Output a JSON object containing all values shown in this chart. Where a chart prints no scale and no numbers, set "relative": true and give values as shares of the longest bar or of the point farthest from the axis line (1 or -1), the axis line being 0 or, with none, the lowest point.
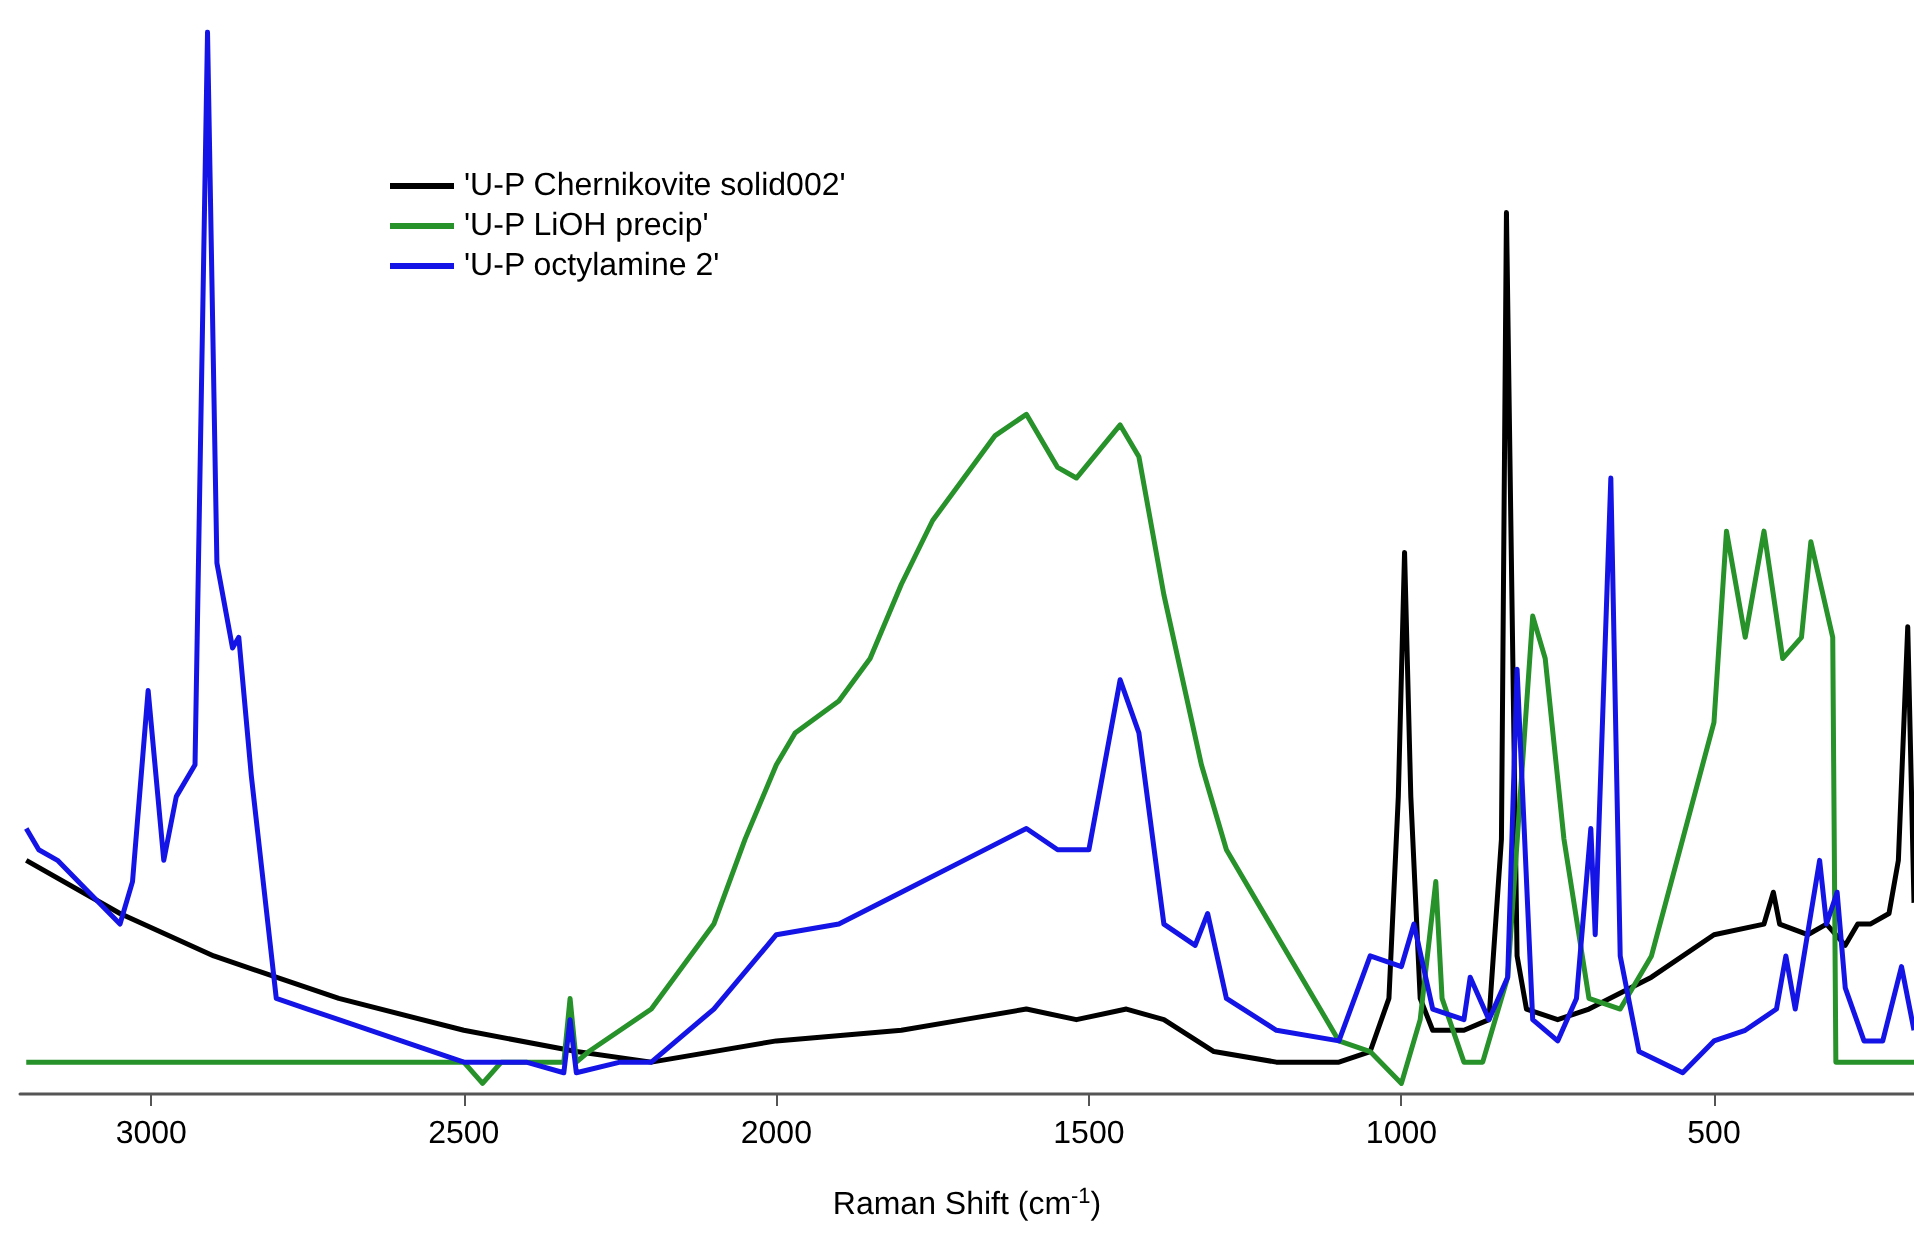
{
  "chart_data": {
    "type": "line",
    "relative": true,
    "xlabel": "Raman Shift (cm$^{-1}$)",
    "xlim": [
      3210,
      180
    ],
    "xticks": [
      3000,
      2500,
      2000,
      1500,
      1000,
      500
    ],
    "tick_labels": "x",
    "grid": false,
    "legend": "top left",
    "marker": "none",
    "line_style": "solid",
    "series": [
      {
        "name": "'U-P Chernikovite solid002'",
        "color": "#000000",
        "x": [
          3200,
          3050,
          2900,
          2700,
          2500,
          2320,
          2200,
          2000,
          1800,
          1700,
          1600,
          1520,
          1440,
          1380,
          1300,
          1200,
          1100,
          1050,
          1020,
          1005,
          995,
          985,
          970,
          950,
          900,
          860,
          840,
          832,
          825,
          815,
          800,
          750,
          700,
          600,
          500,
          420,
          405,
          395,
          350,
          320,
          290,
          270,
          250,
          220,
          205,
          190,
          180
        ],
        "values": [
          0.22,
          0.17,
          0.13,
          0.09,
          0.06,
          0.04,
          0.03,
          0.05,
          0.06,
          0.07,
          0.08,
          0.07,
          0.08,
          0.07,
          0.04,
          0.03,
          0.03,
          0.04,
          0.09,
          0.28,
          0.51,
          0.28,
          0.09,
          0.06,
          0.06,
          0.07,
          0.24,
          0.83,
          0.54,
          0.13,
          0.08,
          0.07,
          0.08,
          0.11,
          0.15,
          0.16,
          0.19,
          0.16,
          0.15,
          0.16,
          0.14,
          0.16,
          0.16,
          0.17,
          0.22,
          0.44,
          0.18
        ]
      },
      {
        "name": "'U-P LiOH precip'",
        "color": "#27912a",
        "x": [
          3200,
          2500,
          2470,
          2440,
          2340,
          2330,
          2320,
          2300,
          2200,
          2100,
          2050,
          2000,
          1970,
          1900,
          1850,
          1800,
          1750,
          1700,
          1650,
          1600,
          1550,
          1520,
          1450,
          1420,
          1380,
          1320,
          1280,
          1200,
          1100,
          1050,
          1000,
          970,
          945,
          935,
          900,
          870,
          830,
          790,
          770,
          740,
          700,
          650,
          600,
          550,
          500,
          480,
          450,
          420,
          390,
          360,
          345,
          310,
          305,
          180
        ],
        "values": [
          0.03,
          0.03,
          0.01,
          0.03,
          0.03,
          0.09,
          0.03,
          0.04,
          0.08,
          0.16,
          0.24,
          0.31,
          0.34,
          0.37,
          0.41,
          0.48,
          0.54,
          0.58,
          0.62,
          0.64,
          0.59,
          0.58,
          0.63,
          0.6,
          0.47,
          0.31,
          0.23,
          0.15,
          0.05,
          0.04,
          0.01,
          0.07,
          0.2,
          0.09,
          0.03,
          0.03,
          0.11,
          0.45,
          0.41,
          0.24,
          0.09,
          0.08,
          0.13,
          0.24,
          0.35,
          0.53,
          0.43,
          0.53,
          0.41,
          0.43,
          0.52,
          0.43,
          0.03,
          0.03
        ]
      },
      {
        "name": "'U-P octylamine 2'",
        "color": "#1414e6",
        "x": [
          3200,
          3180,
          3150,
          3100,
          3050,
          3030,
          3005,
          2980,
          2960,
          2930,
          2910,
          2895,
          2870,
          2860,
          2840,
          2800,
          2750,
          2700,
          2600,
          2500,
          2400,
          2340,
          2330,
          2320,
          2250,
          2200,
          2100,
          2000,
          1900,
          1800,
          1700,
          1600,
          1550,
          1500,
          1450,
          1420,
          1380,
          1330,
          1310,
          1280,
          1200,
          1100,
          1050,
          1000,
          980,
          950,
          900,
          890,
          860,
          830,
          815,
          790,
          750,
          720,
          697,
          690,
          665,
          650,
          620,
          550,
          500,
          450,
          400,
          385,
          370,
          331,
          320,
          303,
          290,
          260,
          230,
          200,
          180
        ],
        "values": [
          0.25,
          0.23,
          0.22,
          0.19,
          0.16,
          0.2,
          0.38,
          0.22,
          0.28,
          0.31,
          1.0,
          0.5,
          0.42,
          0.43,
          0.3,
          0.09,
          0.08,
          0.07,
          0.05,
          0.03,
          0.03,
          0.02,
          0.07,
          0.02,
          0.03,
          0.03,
          0.08,
          0.15,
          0.16,
          0.19,
          0.22,
          0.25,
          0.23,
          0.23,
          0.39,
          0.34,
          0.16,
          0.14,
          0.17,
          0.09,
          0.06,
          0.05,
          0.13,
          0.12,
          0.16,
          0.08,
          0.07,
          0.11,
          0.07,
          0.11,
          0.4,
          0.07,
          0.05,
          0.09,
          0.25,
          0.15,
          0.58,
          0.13,
          0.04,
          0.02,
          0.05,
          0.06,
          0.08,
          0.13,
          0.08,
          0.22,
          0.16,
          0.19,
          0.1,
          0.05,
          0.05,
          0.12,
          0.06
        ]
      }
    ]
  }
}
